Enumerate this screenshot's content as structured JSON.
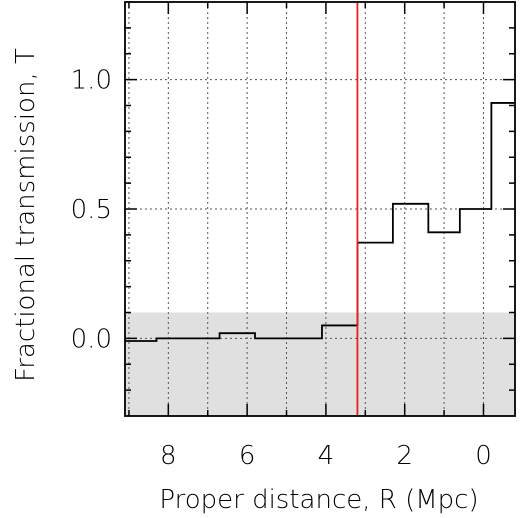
{
  "chart_data": {
    "type": "line",
    "style": "step",
    "title": "",
    "xlabel": "Proper distance, R (Mpc)",
    "ylabel": "Fractional transmission, T",
    "x_reversed": true,
    "xlim": [
      9.1,
      -0.8
    ],
    "ylim": [
      -0.3,
      1.3
    ],
    "x_ticks": [
      8,
      6,
      4,
      2,
      0
    ],
    "x_tick_labels": [
      "8",
      "6",
      "4",
      "2",
      "0"
    ],
    "y_ticks": [
      0.0,
      0.5,
      1.0
    ],
    "y_tick_labels": [
      "0.0",
      "0.5",
      "1.0"
    ],
    "grid": true,
    "grid_style": "dotted",
    "shaded_band": {
      "y_from": -0.3,
      "y_to": 0.1,
      "color": "#e0e0e0"
    },
    "vertical_line": {
      "x": 3.2,
      "color": "#e8201f"
    },
    "series": [
      {
        "edges": [
          9.1,
          8.3,
          7.5,
          6.7,
          5.8,
          5.0,
          4.1,
          3.2,
          2.3,
          1.4,
          0.6,
          -0.2,
          -0.8
        ],
        "values": [
          -0.01,
          0.0,
          0.0,
          0.02,
          0.0,
          0.0,
          0.05,
          0.37,
          0.52,
          0.41,
          0.5,
          0.91
        ],
        "color": "#000000"
      }
    ]
  }
}
